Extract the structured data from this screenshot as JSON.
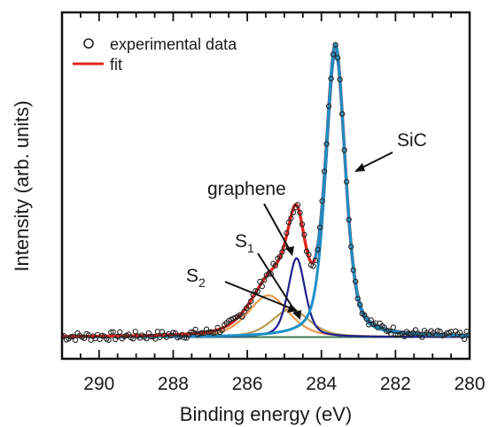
{
  "chart_data": {
    "type": "line",
    "xlabel": "Binding energy (eV)",
    "ylabel": "Intensity (arb. units)",
    "xlim": [
      291,
      280
    ],
    "x_reversed": true,
    "ylim": [
      -0.06,
      1.06
    ],
    "y_ticks_labeled": false,
    "x_ticks": [
      290,
      288,
      286,
      284,
      282,
      280
    ],
    "x_tick_labels": [
      "290",
      "288",
      "286",
      "284",
      "282",
      "280"
    ],
    "legend": {
      "placement": "top-left",
      "entries": [
        {
          "label": "experimental data",
          "marker": "open-circle"
        },
        {
          "label": "fit",
          "marker": "line",
          "color": "#e0261e"
        }
      ]
    },
    "colors": {
      "fit": "#e0261e",
      "SiC": "#1b8fc6",
      "graphene": "#1f1f8c",
      "S1": "#b89a55",
      "S2": "#e89a4e",
      "background": "#3a7a5c",
      "data": "#222222"
    },
    "peaks": [
      {
        "label": "SiC",
        "center": 283.62,
        "amplitude": 0.92,
        "fwhm": 0.62
      },
      {
        "label": "graphene",
        "center": 284.67,
        "amplitude": 0.255,
        "fwhm": 0.55
      },
      {
        "label": "S1",
        "center": 284.83,
        "amplitude": 0.09,
        "fwhm": 1.2
      },
      {
        "label": "S2",
        "center": 285.43,
        "amplitude": 0.135,
        "fwhm": 1.3
      }
    ],
    "background_level": 0.01,
    "data_points_approx": [
      [
        291.0,
        0.0
      ],
      [
        290.0,
        0.0
      ],
      [
        289.0,
        0.0
      ],
      [
        288.0,
        0.01
      ],
      [
        287.0,
        0.02
      ],
      [
        286.5,
        0.05
      ],
      [
        286.0,
        0.09
      ],
      [
        285.5,
        0.16
      ],
      [
        285.0,
        0.25
      ],
      [
        284.7,
        0.34
      ],
      [
        284.4,
        0.24
      ],
      [
        284.2,
        0.25
      ],
      [
        284.0,
        0.48
      ],
      [
        283.8,
        0.85
      ],
      [
        283.62,
        1.02
      ],
      [
        283.4,
        0.85
      ],
      [
        283.2,
        0.52
      ],
      [
        283.0,
        0.29
      ],
      [
        282.8,
        0.15
      ],
      [
        282.5,
        0.07
      ],
      [
        282.0,
        0.03
      ],
      [
        281.0,
        0.01
      ],
      [
        280.0,
        0.0
      ]
    ],
    "annotations": [
      {
        "text": "SiC",
        "target_x": 283.4
      },
      {
        "text": "graphene",
        "target_x": 284.7
      },
      {
        "text": "S",
        "subscript": "1",
        "target_x": 284.3
      },
      {
        "text": "S",
        "subscript": "2",
        "target_x": 284.6
      }
    ]
  }
}
